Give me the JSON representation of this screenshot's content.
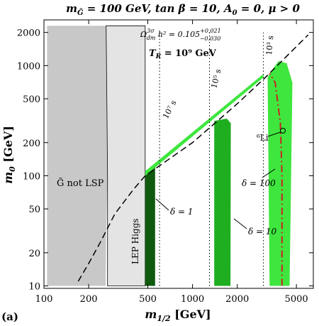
{
  "panel_label": "(a)",
  "chart_data": {
    "type": "area",
    "title": "m_G̃ = 100 GeV, tan β = 10, A₀ = 0, μ > 0",
    "xlabel": "m_1/2 [GeV]",
    "ylabel": "m_0 [GeV]",
    "xscale": "log",
    "yscale": "log",
    "xlim": [
      100,
      6500
    ],
    "ylim": [
      9.5,
      2600
    ],
    "xticks": [
      100,
      200,
      500,
      1000,
      2000,
      5000
    ],
    "yticks": [
      10,
      20,
      50,
      100,
      200,
      500,
      1000,
      2000
    ],
    "xtick_labels": [
      "100",
      "200",
      "500",
      "1000",
      "2000",
      "5000"
    ],
    "ytick_labels": [
      "10",
      "20",
      "50",
      "100",
      "200",
      "500",
      "1000",
      "2000"
    ],
    "colors": {
      "excluded_dark": "#c8c8c8",
      "excluded_light": "#e4e4e4",
      "green_dark": "#0f5a0f",
      "green_mid": "#1fae1f",
      "green_light": "#3ee63e",
      "li6_line": "#cc2222"
    },
    "regions": [
      {
        "name": "gravitino_not_lsp",
        "polygon": [
          [
            105,
            10
          ],
          [
            260,
            10
          ],
          [
            262,
            30
          ],
          [
            268,
            100
          ],
          [
            264,
            800
          ],
          [
            262,
            2300
          ],
          [
            105,
            2300
          ]
        ]
      },
      {
        "name": "lep_higgs",
        "polygon": [
          [
            268,
            10
          ],
          [
            480,
            10
          ],
          [
            480,
            2300
          ],
          [
            262,
            2300
          ],
          [
            264,
            800
          ],
          [
            268,
            100
          ]
        ]
      },
      {
        "name": "delta_1_band",
        "polygon": [
          [
            480,
            10
          ],
          [
            560,
            10
          ],
          [
            560,
            120
          ],
          [
            540,
            118
          ],
          [
            480,
            105
          ]
        ]
      },
      {
        "name": "delta_10_band",
        "polygon": [
          [
            1400,
            10
          ],
          [
            1800,
            10
          ],
          [
            1810,
            300
          ],
          [
            1700,
            330
          ],
          [
            1400,
            315
          ]
        ]
      },
      {
        "name": "delta_100_band",
        "polygon": [
          [
            3300,
            10
          ],
          [
            4500,
            10
          ],
          [
            4700,
            700
          ],
          [
            4300,
            1050
          ],
          [
            3800,
            1100
          ],
          [
            3400,
            900
          ],
          [
            3200,
            780
          ]
        ]
      },
      {
        "name": "wmap_strip",
        "polygon": [
          [
            480,
            100
          ],
          [
            3000,
            780
          ],
          [
            3000,
            840
          ],
          [
            480,
            110
          ]
        ]
      }
    ],
    "lines": [
      {
        "name": "tau_lsp_boundary",
        "style": "dashed",
        "points": [
          [
            170,
            11
          ],
          [
            200,
            16
          ],
          [
            240,
            25
          ],
          [
            300,
            45
          ],
          [
            400,
            75
          ],
          [
            480,
            100
          ],
          [
            1000,
            200
          ],
          [
            2000,
            450
          ],
          [
            3000,
            750
          ],
          [
            6000,
            1900
          ]
        ]
      },
      {
        "name": "tau_lifetime_1e7",
        "style": "dotted",
        "points": [
          [
            600,
            10
          ],
          [
            600,
            2000
          ]
        ]
      },
      {
        "name": "tau_lifetime_1e5",
        "style": "dotted",
        "points": [
          [
            1300,
            10
          ],
          [
            1300,
            2000
          ]
        ]
      },
      {
        "name": "tau_lifetime_1e3",
        "style": "dotted",
        "points": [
          [
            3000,
            10
          ],
          [
            3000,
            2000
          ]
        ]
      },
      {
        "name": "li6_contour",
        "style": "dashdot",
        "points": [
          [
            4000,
            10
          ],
          [
            4000,
            100
          ],
          [
            3900,
            300
          ],
          [
            3600,
            700
          ],
          [
            3300,
            850
          ]
        ]
      }
    ],
    "annotations": [
      {
        "text": "G̃ not LSP"
      },
      {
        "text": "LEP Higgs"
      },
      {
        "text": "Ω_dm^3σ h² = 0.105 +0.021 −0.030"
      },
      {
        "text": "T_R = 10⁹ GeV"
      },
      {
        "text": "10⁷ s"
      },
      {
        "text": "10⁵ s"
      },
      {
        "text": "10³ s"
      },
      {
        "text": "δ = 1"
      },
      {
        "text": "δ = 10"
      },
      {
        "text": "δ = 100"
      },
      {
        "text": "⁶Li"
      }
    ]
  }
}
